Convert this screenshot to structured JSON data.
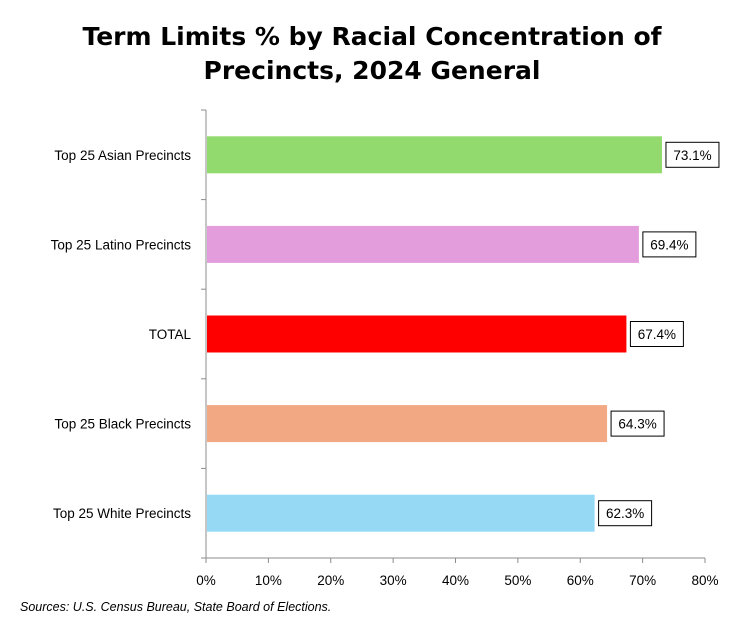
{
  "title_line1": "Term Limits % by Racial Concentration of",
  "title_line2": "Precincts, 2024 General",
  "source": "Sources: U.S. Census Bureau, State Board of Elections.",
  "chart_data": {
    "type": "bar",
    "orientation": "horizontal",
    "title": "Term Limits % by Racial Concentration of Precincts, 2024 General",
    "categories": [
      "Top 25 Asian Precincts",
      "Top 25 Latino Precincts",
      "TOTAL",
      "Top 25 Black Precincts",
      "Top 25 White Precincts"
    ],
    "values": [
      73.1,
      69.4,
      67.4,
      64.3,
      62.3
    ],
    "data_labels": [
      "73.1%",
      "69.4%",
      "67.4%",
      "64.3%",
      "62.3%"
    ],
    "colors": [
      "#92d96e",
      "#e39cdc",
      "#ff0000",
      "#f2a882",
      "#96d9f5"
    ],
    "xlim": [
      0,
      80
    ],
    "xticks": [
      0,
      10,
      20,
      30,
      40,
      50,
      60,
      70,
      80
    ],
    "xtick_labels": [
      "0%",
      "10%",
      "20%",
      "30%",
      "40%",
      "50%",
      "60%",
      "70%",
      "80%"
    ],
    "grid": false,
    "legend": "none"
  }
}
